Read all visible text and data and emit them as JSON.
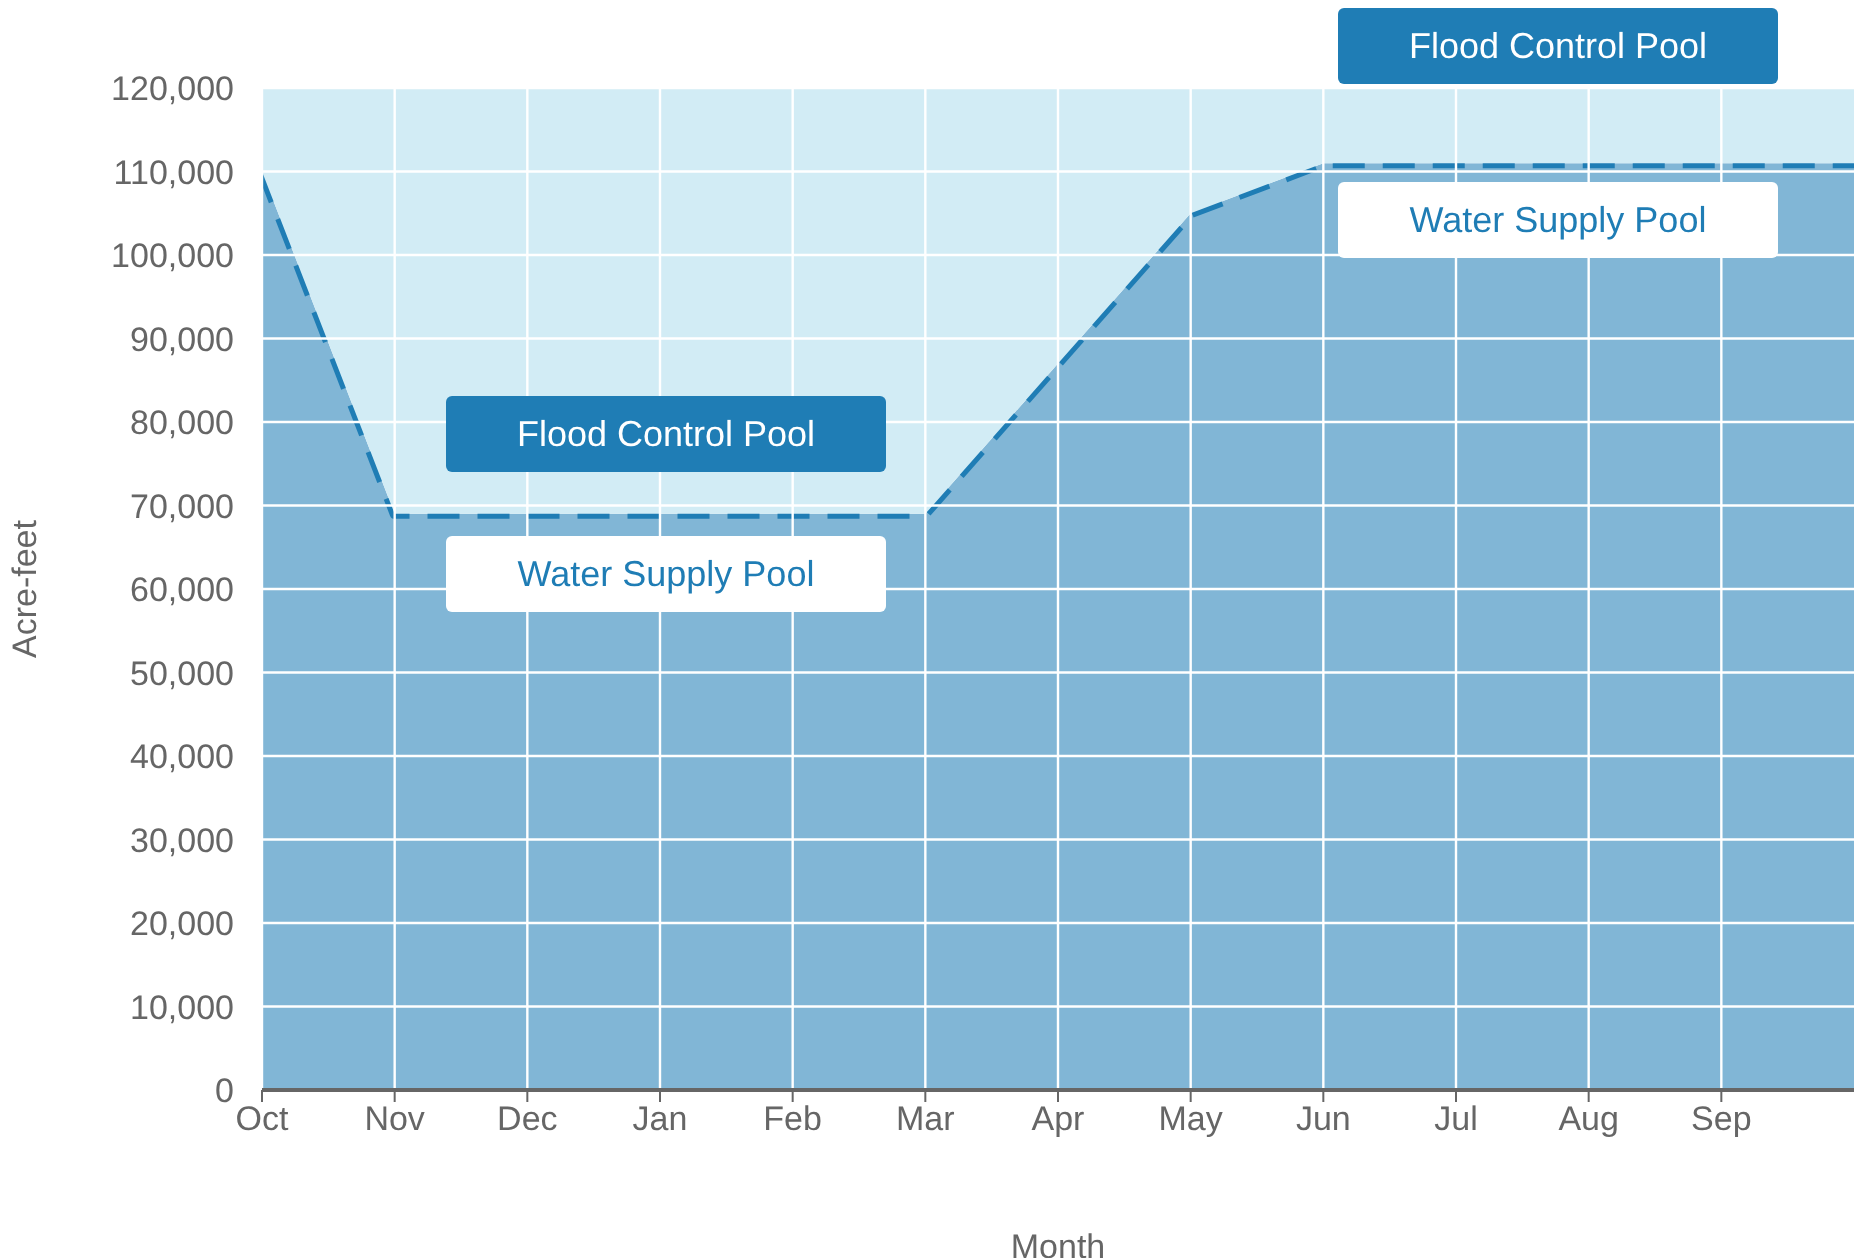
{
  "chart_data": {
    "type": "area",
    "xlabel": "Month",
    "ylabel": "Acre-feet",
    "stacked": true,
    "categories": [
      "Oct",
      "Nov",
      "Dec",
      "Jan",
      "Feb",
      "Mar",
      "Apr",
      "May",
      "Jun",
      "Jul",
      "Aug",
      "Sep",
      null
    ],
    "series": [
      {
        "name": "Water Supply Pool",
        "color": "#1f7db5",
        "line_style": "dashed",
        "values": [
          110000,
          69000,
          69000,
          69000,
          69000,
          69000,
          87000,
          105000,
          111000,
          111000,
          111000,
          111000,
          111000
        ]
      },
      {
        "name": "Flood Control Pool",
        "color": "#d2ecf5",
        "values": [
          10000,
          51000,
          51000,
          51000,
          51000,
          51000,
          33000,
          15000,
          9000,
          9000,
          9000,
          9000,
          9000
        ]
      }
    ],
    "ylim": [
      0,
      120000
    ],
    "yticks": [
      0,
      {
        "value": 10000,
        "label": "10,000"
      },
      {
        "value": 20000,
        "label": "20,000"
      },
      {
        "value": 30000,
        "label": "30,000"
      },
      {
        "value": 40000,
        "label": "40,000"
      },
      {
        "value": 50000,
        "label": "50,000"
      },
      {
        "value": 60000,
        "label": "60,000"
      },
      {
        "value": 70000,
        "label": "70,000"
      },
      {
        "value": 80000,
        "label": "80,000"
      },
      {
        "value": 90000,
        "label": "90,000"
      },
      {
        "value": 100000,
        "label": "100,000"
      },
      {
        "value": 110000,
        "label": "110,000"
      },
      {
        "value": 120000,
        "label": "120,000"
      }
    ],
    "grid": true,
    "legend": false
  }
}
